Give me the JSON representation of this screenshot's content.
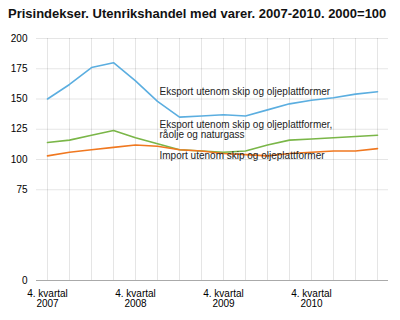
{
  "chart_data": {
    "type": "line",
    "title": "Prisindekser. Utenrikshandel med varer. 2007-2010. 2000=100",
    "categories": [
      "4. kvartal\n2007",
      null,
      null,
      null,
      "4. kvartal\n2008",
      null,
      null,
      null,
      "4. kvartal\n2009",
      null,
      null,
      null,
      "4. kvartal\n2010",
      null,
      null,
      null
    ],
    "series": [
      {
        "name": "Eksport utenom skip og oljeplattformer",
        "color": "#5baee0",
        "values": [
          150,
          162,
          176,
          180,
          165,
          148,
          135,
          136,
          137,
          136,
          141,
          146,
          149,
          151,
          154,
          156
        ]
      },
      {
        "name": "Eksport utenom skip og oljeplattformer,\nråolje og naturgass",
        "color": "#7ab648",
        "values": [
          114,
          116,
          120,
          124,
          118,
          113,
          108,
          107,
          106,
          107,
          112,
          116,
          117,
          118,
          119,
          120
        ]
      },
      {
        "name": "Import utenom skip og oljeplattformer",
        "color": "#f07820",
        "values": [
          103,
          106,
          108,
          110,
          112,
          111,
          108,
          107,
          105,
          104,
          103,
          105,
          106,
          107,
          107,
          109
        ]
      }
    ],
    "ylim": [
      0,
      200
    ],
    "yticks": [
      0,
      75,
      100,
      125,
      150,
      175,
      200
    ],
    "grid": true
  }
}
